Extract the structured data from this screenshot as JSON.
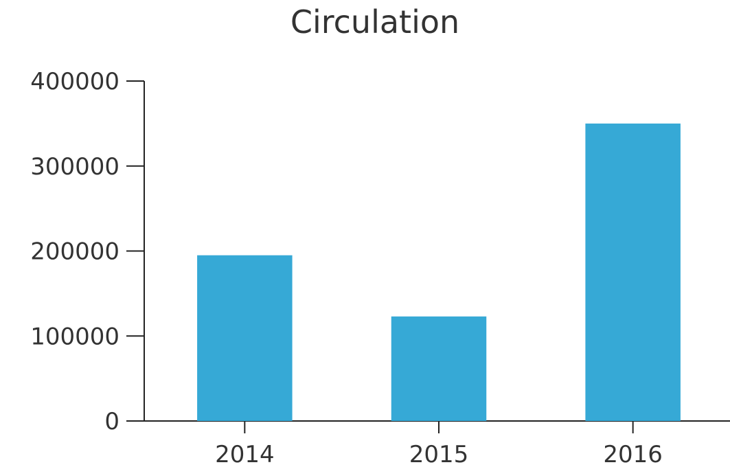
{
  "chart_data": {
    "type": "bar",
    "title": "Circulation",
    "xlabel": "",
    "ylabel": "",
    "categories": [
      "2014",
      "2015",
      "2016"
    ],
    "values": [
      195000,
      123000,
      350000
    ],
    "ylim": [
      0,
      400000
    ],
    "yticks": [
      "0",
      "100000",
      "200000",
      "300000",
      "400000"
    ],
    "grid": false,
    "legend": "none",
    "colors": {
      "bar": "#36a9d6",
      "axis": "#222222",
      "text": "#333333"
    }
  }
}
